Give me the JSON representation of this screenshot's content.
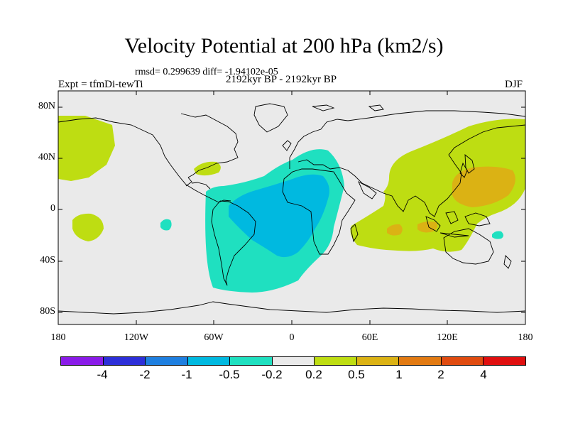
{
  "title": "Velocity Potential at 200 hPa (km2/s)",
  "stats": "rmsd= 0.299639 diff= -1.94102e-05",
  "period": "2192kyr BP - 2192kyr BP",
  "experiment": "Expt = tfmDi-tewTi",
  "season": "DJF",
  "axes": {
    "y_labels": [
      "80N",
      "40N",
      "0",
      "40S",
      "80S"
    ],
    "x_labels": [
      "180",
      "120W",
      "60W",
      "0",
      "60E",
      "120E",
      "180"
    ]
  },
  "colorbar": {
    "colors": [
      "#8a1be8",
      "#2d2fd9",
      "#1e7fe0",
      "#00b9e0",
      "#1fe0c0",
      "#eaeaea",
      "#bedd12",
      "#dbb214",
      "#e27a12",
      "#e04b10",
      "#e00f0f"
    ],
    "labels": [
      "-4",
      "-2",
      "-1",
      "-0.5",
      "-0.2",
      "0.2",
      "0.5",
      "1",
      "2",
      "4"
    ]
  },
  "map_fields": {
    "background": "#eaeaea",
    "coastline": "#000000"
  }
}
